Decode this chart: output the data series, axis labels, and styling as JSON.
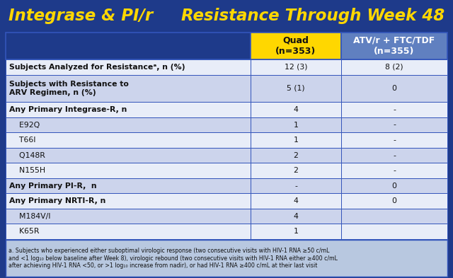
{
  "title_left": "Integrase & PI/r",
  "title_right": "  Resistance Through Week 48",
  "title_color": "#FFD700",
  "bg_color": "#1e3a8a",
  "header_col1_bg": "#FFD700",
  "header_col2_bg": "#6080c0",
  "border_color": "#3355bb",
  "col1_header": "Quad\n(n=353)",
  "col2_header": "ATV/r + FTC/TDF\n(n=355)",
  "rows": [
    {
      "label": "Subjects Analyzed for Resistanceᵃ, n (%)",
      "col1": "12 (3)",
      "col2": "8 (2)",
      "bold": true,
      "indent": false,
      "alt": false,
      "tall": false
    },
    {
      "label": "Subjects with Resistance to\nARV Regimen, n (%)",
      "col1": "5 (1)",
      "col2": "0",
      "bold": true,
      "indent": false,
      "alt": true,
      "tall": true
    },
    {
      "label": "Any Primary Integrase-R, n",
      "col1": "4",
      "col2": "-",
      "bold": true,
      "indent": false,
      "alt": false,
      "tall": false
    },
    {
      "label": "    E92Q",
      "col1": "1",
      "col2": "-",
      "bold": false,
      "indent": false,
      "alt": true,
      "tall": false
    },
    {
      "label": "    T66I",
      "col1": "1",
      "col2": "-",
      "bold": false,
      "indent": false,
      "alt": false,
      "tall": false
    },
    {
      "label": "    Q148R",
      "col1": "2",
      "col2": "-",
      "bold": false,
      "indent": false,
      "alt": true,
      "tall": false
    },
    {
      "label": "    N155H",
      "col1": "2",
      "col2": "-",
      "bold": false,
      "indent": false,
      "alt": false,
      "tall": false
    },
    {
      "label": "Any Primary PI-R,  n",
      "col1": "-",
      "col2": "0",
      "bold": true,
      "indent": false,
      "alt": true,
      "tall": false
    },
    {
      "label": "Any Primary NRTI-R, n",
      "col1": "4",
      "col2": "0",
      "bold": true,
      "indent": false,
      "alt": false,
      "tall": false
    },
    {
      "label": "    M184V/I",
      "col1": "4",
      "col2": "",
      "bold": false,
      "indent": false,
      "alt": true,
      "tall": false
    },
    {
      "label": "    K65R",
      "col1": "1",
      "col2": "",
      "bold": false,
      "indent": false,
      "alt": false,
      "tall": false
    }
  ],
  "row_bg_normal": "#e8edf8",
  "row_bg_alt": "#ccd4ec",
  "footnote_lines": [
    "a. Subjects who experienced either suboptimal virologic response (two consecutive visits with HIV-1 RNA ≥50 c/mL",
    "and <1 log₁₀ below baseline after Week 8), virologic rebound (two consecutive visits with HIV-1 RNA either ≥400 c/mL",
    "after achieving HIV-1 RNA <50, or >1 log₁₀ increase from nadir), or had HIV-1 RNA ≥400 c/mL at their last visit"
  ],
  "footnote_color": "#111111",
  "footnote_bg": "#b8c8e0"
}
